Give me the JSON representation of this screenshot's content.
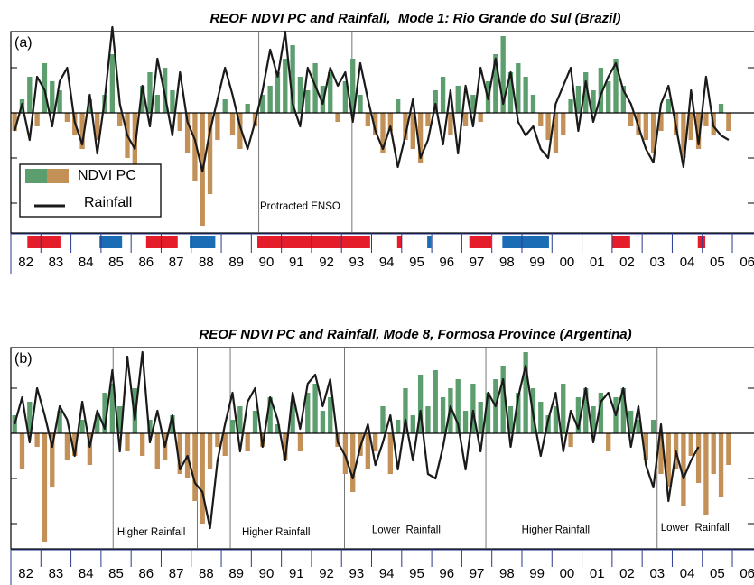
{
  "chart_data": [
    {
      "type": "bar_line",
      "panel_label": "(a)",
      "title": "REOF NDVI PC and Rainfall,  Mode 1: Rio Grande do Sul (Brazil)",
      "x": [
        1982,
        1982.25,
        1982.5,
        1982.75,
        1983,
        1983.25,
        1983.5,
        1983.75,
        1984,
        1984.25,
        1984.5,
        1984.75,
        1985,
        1985.25,
        1985.5,
        1985.75,
        1986,
        1986.25,
        1986.5,
        1986.75,
        1987,
        1987.25,
        1987.5,
        1987.75,
        1988,
        1988.25,
        1988.5,
        1988.75,
        1989,
        1989.25,
        1989.5,
        1989.75,
        1990,
        1990.25,
        1990.5,
        1990.75,
        1991,
        1991.25,
        1991.5,
        1991.75,
        1992,
        1992.25,
        1992.5,
        1992.75,
        1993,
        1993.25,
        1993.5,
        1993.75,
        1994,
        1994.25,
        1994.5,
        1994.75,
        1995,
        1995.25,
        1995.5,
        1995.75,
        1996,
        1996.25,
        1996.5,
        1996.75,
        1997,
        1997.25,
        1997.5,
        1997.75,
        1998,
        1998.25,
        1998.5,
        1998.75,
        1999,
        1999.25,
        1999.5,
        1999.75,
        2000,
        2000.25,
        2000.5,
        2000.75,
        2001,
        2001.25,
        2001.5,
        2001.75,
        2002,
        2002.25,
        2002.5,
        2002.75,
        2003,
        2003.25,
        2003.5,
        2003.75,
        2004,
        2004.25,
        2004.5,
        2004.75,
        2005,
        2005.25,
        2005.5,
        2005.75
      ],
      "xlim": [
        1982,
        2006.72
      ],
      "ylim": [
        -2.66,
        1.8
      ],
      "yticks": [
        -2,
        -1,
        0,
        1
      ],
      "xticks": [
        {
          "value": 1982.5,
          "label": "82"
        },
        {
          "value": 1983.5,
          "label": "83"
        },
        {
          "value": 1984.5,
          "label": "84"
        },
        {
          "value": 1985.5,
          "label": "85"
        },
        {
          "value": 1986.5,
          "label": "86"
        },
        {
          "value": 1987.5,
          "label": "87"
        },
        {
          "value": 1988.5,
          "label": "88"
        },
        {
          "value": 1989.5,
          "label": "89"
        },
        {
          "value": 1990.5,
          "label": "90"
        },
        {
          "value": 1991.5,
          "label": "91"
        },
        {
          "value": 1992.5,
          "label": "92"
        },
        {
          "value": 1993.5,
          "label": "93"
        },
        {
          "value": 1994.5,
          "label": "94"
        },
        {
          "value": 1995.5,
          "label": "95"
        },
        {
          "value": 1996.5,
          "label": "96"
        },
        {
          "value": 1997.5,
          "label": "97"
        },
        {
          "value": 1998.5,
          "label": "98"
        },
        {
          "value": 1999.5,
          "label": "99"
        },
        {
          "value": 2000.5,
          "label": "00"
        },
        {
          "value": 2001.5,
          "label": "01"
        },
        {
          "value": 2002.5,
          "label": "02"
        },
        {
          "value": 2003.5,
          "label": "03"
        },
        {
          "value": 2004.5,
          "label": "04"
        },
        {
          "value": 2005.5,
          "label": "05"
        },
        {
          "value": 2006.5,
          "label": "06"
        }
      ],
      "series": [
        {
          "name": "NDVI PC",
          "type": "bar",
          "color": "#5c9e6e",
          "negative_color": "#c39158",
          "values": [
            -0.4,
            0.3,
            0.8,
            -0.3,
            1.1,
            0.7,
            0.5,
            -0.2,
            -0.5,
            -0.8,
            0.3,
            -0.6,
            0.4,
            1.3,
            -0.3,
            -1.0,
            -1.2,
            0.6,
            0.9,
            0.4,
            1.0,
            0.5,
            -0.4,
            -0.9,
            -1.5,
            -2.5,
            -1.8,
            -0.6,
            0.3,
            -0.5,
            -0.8,
            0.2,
            -0.3,
            0.4,
            0.6,
            0.9,
            1.2,
            1.5,
            0.8,
            0.5,
            1.1,
            0.6,
            0.9,
            -0.2,
            0.7,
            1.2,
            0.4,
            -0.3,
            -0.5,
            -0.9,
            -0.4,
            0.3,
            -0.6,
            -0.8,
            -1.1,
            -0.3,
            0.5,
            0.8,
            -0.5,
            0.6,
            -0.3,
            0.4,
            -0.2,
            0.7,
            1.3,
            1.7,
            0.9,
            1.1,
            0.8,
            0.4,
            -0.3,
            -0.6,
            -0.9,
            -0.5,
            0.3,
            0.6,
            0.9,
            0.5,
            1.0,
            0.7,
            1.2,
            0.6,
            -0.3,
            -0.5,
            -0.6,
            -0.9,
            -0.4,
            0.3,
            -0.5,
            -1.0,
            -0.6,
            -0.8,
            -0.3,
            -0.5,
            0.2,
            -0.4
          ]
        },
        {
          "name": "Rainfall",
          "type": "line",
          "color": "#1a1a1a",
          "values": [
            -0.4,
            0.2,
            -0.6,
            0.8,
            0.5,
            -0.3,
            0.7,
            1.0,
            -0.2,
            -0.7,
            0.4,
            -0.9,
            0.3,
            1.9,
            0.2,
            -0.5,
            -0.8,
            0.6,
            -0.3,
            1.2,
            0.4,
            -0.5,
            0.9,
            -0.2,
            -0.6,
            -1.3,
            -0.4,
            0.3,
            1.0,
            0.4,
            -0.3,
            -0.8,
            -0.2,
            0.5,
            1.4,
            0.8,
            1.8,
            0.2,
            -0.3,
            1.0,
            0.6,
            0.2,
            1.0,
            0.6,
            0.9,
            -0.2,
            1.1,
            0.3,
            -0.4,
            -0.8,
            -0.3,
            -1.2,
            -0.5,
            0.3,
            -1.0,
            -0.6,
            0.2,
            -0.7,
            0.5,
            -0.9,
            0.6,
            -0.3,
            1.0,
            0.3,
            1.2,
            0.2,
            0.9,
            -0.2,
            -0.5,
            -0.3,
            -0.8,
            -1.0,
            0.2,
            0.6,
            1.0,
            -0.4,
            0.7,
            -0.2,
            0.4,
            0.8,
            1.1,
            0.5,
            0.2,
            -0.3,
            -0.8,
            -1.1,
            0.2,
            0.6,
            -0.3,
            -1.2,
            0.5,
            -0.7,
            0.8,
            -0.3,
            -0.5,
            -0.6
          ]
        }
      ],
      "legend": true,
      "legend_loc": "lower left",
      "vlines": [
        1990.25,
        1993.35
      ],
      "annotations": [
        {
          "text": "Protracted ENSO",
          "x": 1990.29,
          "y": -2.08
        }
      ],
      "enso_events": [
        {
          "start": 1982.55,
          "end": 1983.65,
          "color": "#e51d2a"
        },
        {
          "start": 1984.95,
          "end": 1985.7,
          "color": "#1a6cb5"
        },
        {
          "start": 1986.5,
          "end": 1987.55,
          "color": "#e51d2a"
        },
        {
          "start": 1987.95,
          "end": 1988.8,
          "color": "#1a6cb5"
        },
        {
          "start": 1990.2,
          "end": 1993.95,
          "color": "#e51d2a"
        },
        {
          "start": 1994.85,
          "end": 1995.0,
          "color": "#e51d2a"
        },
        {
          "start": 1995.85,
          "end": 1995.98,
          "color": "#1a6cb5"
        },
        {
          "start": 1997.25,
          "end": 1997.98,
          "color": "#e51d2a"
        },
        {
          "start": 1998.35,
          "end": 1999.9,
          "color": "#1a6cb5"
        },
        {
          "start": 2002.0,
          "end": 2002.6,
          "color": "#e51d2a"
        },
        {
          "start": 2004.85,
          "end": 2005.1,
          "color": "#e51d2a"
        }
      ]
    },
    {
      "type": "bar_line",
      "panel_label": "(b)",
      "title": "REOF NDVI PC and Rainfall, Mode 8, Formosa Province (Argentina)",
      "x": [
        1982,
        1982.25,
        1982.5,
        1982.75,
        1983,
        1983.25,
        1983.5,
        1983.75,
        1984,
        1984.25,
        1984.5,
        1984.75,
        1985,
        1985.25,
        1985.5,
        1985.75,
        1986,
        1986.25,
        1986.5,
        1986.75,
        1987,
        1987.25,
        1987.5,
        1987.75,
        1988,
        1988.25,
        1988.5,
        1988.75,
        1989,
        1989.25,
        1989.5,
        1989.75,
        1990,
        1990.25,
        1990.5,
        1990.75,
        1991,
        1991.25,
        1991.5,
        1991.75,
        1992,
        1992.25,
        1992.5,
        1992.75,
        1993,
        1993.25,
        1993.5,
        1993.75,
        1994,
        1994.25,
        1994.5,
        1994.75,
        1995,
        1995.25,
        1995.5,
        1995.75,
        1996,
        1996.25,
        1996.5,
        1996.75,
        1997,
        1997.25,
        1997.5,
        1997.75,
        1998,
        1998.25,
        1998.5,
        1998.75,
        1999,
        1999.25,
        1999.5,
        1999.75,
        2000,
        2000.25,
        2000.5,
        2000.75,
        2001,
        2001.25,
        2001.5,
        2001.75,
        2002,
        2002.25,
        2002.5,
        2002.75,
        2003,
        2003.25,
        2003.5,
        2003.75,
        2004,
        2004.25,
        2004.5,
        2004.75,
        2005,
        2005.25,
        2005.5,
        2005.75
      ],
      "xlim": [
        1982,
        2006.72
      ],
      "ylim": [
        -2.56,
        1.9
      ],
      "yticks": [
        -2,
        -1,
        0,
        1
      ],
      "xticks": [
        {
          "value": 1982.5,
          "label": "82"
        },
        {
          "value": 1983.5,
          "label": "83"
        },
        {
          "value": 1984.5,
          "label": "84"
        },
        {
          "value": 1985.5,
          "label": "85"
        },
        {
          "value": 1986.5,
          "label": "86"
        },
        {
          "value": 1987.5,
          "label": "87"
        },
        {
          "value": 1988.5,
          "label": "88"
        },
        {
          "value": 1989.5,
          "label": "89"
        },
        {
          "value": 1990.5,
          "label": "90"
        },
        {
          "value": 1991.5,
          "label": "91"
        },
        {
          "value": 1992.5,
          "label": "92"
        },
        {
          "value": 1993.5,
          "label": "93"
        },
        {
          "value": 1994.5,
          "label": "94"
        },
        {
          "value": 1995.5,
          "label": "95"
        },
        {
          "value": 1996.5,
          "label": "96"
        },
        {
          "value": 1997.5,
          "label": "97"
        },
        {
          "value": 1998.5,
          "label": "98"
        },
        {
          "value": 1999.5,
          "label": "99"
        },
        {
          "value": 2000.5,
          "label": "00"
        },
        {
          "value": 2001.5,
          "label": "01"
        },
        {
          "value": 2002.5,
          "label": "02"
        },
        {
          "value": 2003.5,
          "label": "03"
        },
        {
          "value": 2004.5,
          "label": "04"
        },
        {
          "value": 2005.5,
          "label": "05"
        },
        {
          "value": 2006.5,
          "label": "06"
        }
      ],
      "series": [
        {
          "name": "NDVI PC",
          "type": "bar",
          "color": "#5c9e6e",
          "negative_color": "#c39158",
          "values": [
            0.4,
            -0.8,
            0.7,
            -0.3,
            -2.4,
            -1.2,
            0.5,
            -0.6,
            -0.5,
            0.3,
            -0.7,
            0.4,
            0.9,
            1.1,
            0.6,
            -0.4,
            1.0,
            -0.5,
            0.3,
            -0.8,
            -0.6,
            0.4,
            -0.9,
            -1.0,
            -1.5,
            -2.0,
            -0.8,
            -0.3,
            -0.5,
            0.3,
            0.6,
            -0.4,
            0.5,
            -0.3,
            0.8,
            0.2,
            -0.6,
            0.7,
            -0.4,
            0.9,
            1.1,
            0.5,
            0.8,
            -0.3,
            -0.9,
            -1.3,
            -0.5,
            -0.8,
            -0.4,
            0.6,
            -0.9,
            0.3,
            1.0,
            0.4,
            1.3,
            0.6,
            1.4,
            0.8,
            1.0,
            1.2,
            0.5,
            1.1,
            0.7,
            0.9,
            1.2,
            1.5,
            0.6,
            0.9,
            1.8,
            1.0,
            0.7,
            0.4,
            0.6,
            1.1,
            -0.3,
            0.8,
            1.0,
            0.6,
            0.9,
            -0.4,
            0.8,
            1.0,
            0.5,
            0.3,
            -0.6,
            0.3,
            -0.9,
            -1.2,
            -0.8,
            -1.6,
            -0.5,
            -1.1,
            -1.8,
            -0.9,
            -1.4,
            -0.7
          ]
        },
        {
          "name": "Rainfall",
          "type": "line",
          "color": "#1a1a1a",
          "values": [
            0.2,
            0.8,
            -0.2,
            1.0,
            0.4,
            -0.3,
            0.6,
            0.3,
            -0.5,
            0.7,
            -0.3,
            0.5,
            0.1,
            1.4,
            -0.4,
            1.7,
            0.3,
            1.8,
            -0.2,
            0.5,
            -0.3,
            0.4,
            -0.8,
            -0.5,
            -1.1,
            -1.3,
            -2.1,
            -0.6,
            0.2,
            0.9,
            -0.4,
            0.7,
            1.0,
            -0.3,
            0.8,
            0.3,
            -0.6,
            0.9,
            0.1,
            1.1,
            1.3,
            0.6,
            1.2,
            -0.2,
            -0.5,
            -1.0,
            -0.3,
            0.2,
            -0.7,
            -0.2,
            0.4,
            -0.8,
            0.3,
            -0.6,
            0.5,
            -0.9,
            -1.0,
            -0.3,
            0.6,
            0.2,
            -0.8,
            0.5,
            -0.4,
            0.9,
            0.6,
            1.2,
            -0.3,
            0.8,
            1.5,
            0.4,
            -0.5,
            0.3,
            0.9,
            -0.4,
            0.5,
            0.1,
            1.0,
            -0.2,
            0.7,
            0.9,
            0.4,
            1.0,
            -0.3,
            0.6,
            -0.7,
            -1.2,
            0.2,
            -1.5,
            -0.4,
            -1.0,
            -0.6,
            -0.3,
            null,
            null,
            null,
            null
          ]
        }
      ],
      "legend": false,
      "vlines": [
        1985.4,
        1988.2,
        1989.3,
        1993.1,
        1997.8,
        2003.5
      ],
      "annotations": [
        {
          "text": "Higher Rainfall",
          "x": 1985.54,
          "y": -2.2
        },
        {
          "text": "Higher Rainfall",
          "x": 1989.69,
          "y": -2.2
        },
        {
          "text": "Lower  Rainfall",
          "x": 1994.01,
          "y": -2.15
        },
        {
          "text": "Higher Rainfall",
          "x": 1998.99,
          "y": -2.15
        },
        {
          "text": "Lower  Rainfall",
          "x": 2003.62,
          "y": -2.1
        }
      ]
    }
  ]
}
